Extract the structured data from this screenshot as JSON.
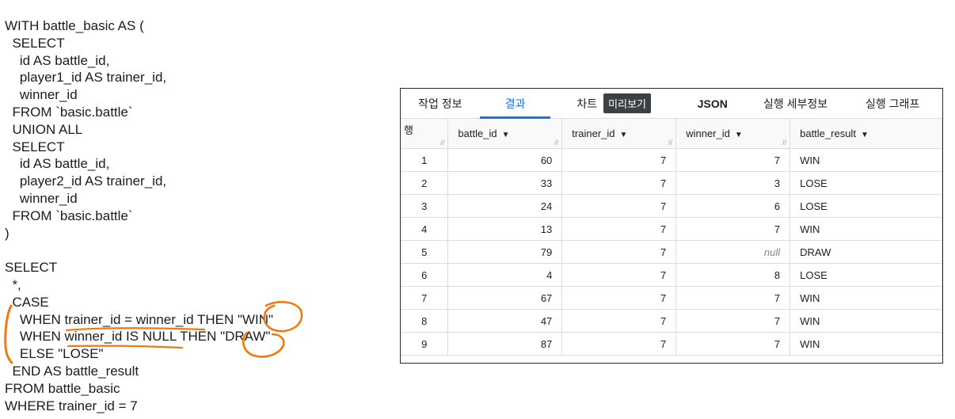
{
  "sql": {
    "lines": [
      "WITH battle_basic AS (",
      "  SELECT",
      "    id AS battle_id,",
      "    player1_id AS trainer_id,",
      "    winner_id",
      "  FROM `basic.battle`",
      "  UNION ALL",
      "  SELECT",
      "    id AS battle_id,",
      "    player2_id AS trainer_id,",
      "    winner_id",
      "  FROM `basic.battle`",
      ")",
      "",
      "SELECT",
      "  *,",
      "  CASE",
      "    WHEN trainer_id = winner_id THEN \"WIN\"",
      "    WHEN winner_id IS NULL THEN \"DRAW\"",
      "    ELSE \"LOSE\"",
      "  END AS battle_result",
      "FROM battle_basic",
      "WHERE trainer_id = 7"
    ]
  },
  "annotation": {
    "color": "#f07a10"
  },
  "results": {
    "tabs": {
      "job_info": "작업 정보",
      "results": "결과",
      "chart": "차트",
      "preview": "미리보기",
      "json": "JSON",
      "execution_details": "실행 세부정보",
      "execution_graph": "실행 그래프"
    },
    "row_header": "행",
    "columns": [
      "battle_id",
      "trainer_id",
      "winner_id",
      "battle_result"
    ],
    "null_text": "null",
    "rows": [
      {
        "rn": "1",
        "battle_id": "60",
        "trainer_id": "7",
        "winner_id": "7",
        "battle_result": "WIN"
      },
      {
        "rn": "2",
        "battle_id": "33",
        "trainer_id": "7",
        "winner_id": "3",
        "battle_result": "LOSE"
      },
      {
        "rn": "3",
        "battle_id": "24",
        "trainer_id": "7",
        "winner_id": "6",
        "battle_result": "LOSE"
      },
      {
        "rn": "4",
        "battle_id": "13",
        "trainer_id": "7",
        "winner_id": "7",
        "battle_result": "WIN"
      },
      {
        "rn": "5",
        "battle_id": "79",
        "trainer_id": "7",
        "winner_id": null,
        "battle_result": "DRAW"
      },
      {
        "rn": "6",
        "battle_id": "4",
        "trainer_id": "7",
        "winner_id": "8",
        "battle_result": "LOSE"
      },
      {
        "rn": "7",
        "battle_id": "67",
        "trainer_id": "7",
        "winner_id": "7",
        "battle_result": "WIN"
      },
      {
        "rn": "8",
        "battle_id": "47",
        "trainer_id": "7",
        "winner_id": "7",
        "battle_result": "WIN"
      },
      {
        "rn": "9",
        "battle_id": "87",
        "trainer_id": "7",
        "winner_id": "7",
        "battle_result": "WIN"
      }
    ]
  }
}
